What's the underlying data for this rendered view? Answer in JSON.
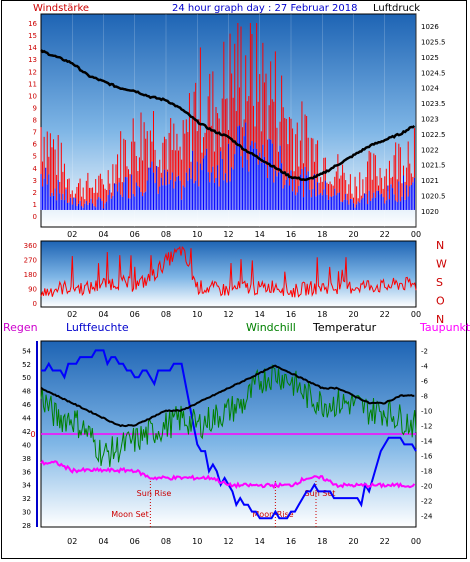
{
  "header": {
    "left_label": "Windstärke",
    "title": "24 hour graph day : 27 Februar 2018",
    "right_label": "Luftdruck"
  },
  "colors": {
    "wind_avg": "#ff0000",
    "wind_gust_base": "#0000ff",
    "pressure": "#000000",
    "direction": "#ff0000",
    "humidity": "#0000ff",
    "windchill": "#008000",
    "temperature": "#000000",
    "dewpoint": "#ff00ff",
    "zero_line": "#ff00ff",
    "panel_gradient_top": "#1e64b4",
    "panel_gradient_bottom": "#ffffff",
    "sun_label": "#cc0000",
    "moon_label": "#cc0000",
    "axis_blue": "#0000cc"
  },
  "chart_data": [
    {
      "type": "line",
      "title": "24 hour graph day : 27 Februar 2018",
      "x_ticks": [
        "02",
        "04",
        "06",
        "08",
        "10",
        "12",
        "14",
        "16",
        "18",
        "20",
        "22",
        "00"
      ],
      "left_axis_label": "Windstärke",
      "left_ticks": [
        "16",
        "15",
        "14",
        "13",
        "12",
        "11",
        "10",
        "9",
        "8",
        "7",
        "6",
        "5",
        "4",
        "3",
        "2",
        "1",
        "0"
      ],
      "right_axis_label": "Luftdruck",
      "right_ticks": [
        "1026",
        "1025.5",
        "1025",
        "1024.5",
        "1024",
        "1023.5",
        "1023",
        "1022.5",
        "1022",
        "1021.5",
        "1021",
        "1020.5",
        "1020"
      ],
      "ylim_left": [
        0,
        16
      ],
      "ylim_right": [
        1020,
        1026.5
      ],
      "series": [
        {
          "name": "Windstärke",
          "hours": [
            0,
            1,
            2,
            3,
            4,
            5,
            6,
            7,
            8,
            9,
            10,
            11,
            12,
            13,
            14,
            15,
            16,
            17,
            18,
            19,
            20,
            21,
            22,
            23,
            24
          ],
          "values": [
            6,
            4,
            2,
            2,
            2,
            4,
            5,
            6,
            5,
            4,
            8,
            7,
            9,
            10,
            9,
            8,
            6,
            5,
            4,
            3,
            2,
            3,
            3,
            4,
            5
          ]
        },
        {
          "name": "Luftdruck",
          "hours": [
            0,
            1,
            2,
            3,
            4,
            5,
            6,
            7,
            8,
            9,
            10,
            11,
            12,
            13,
            14,
            15,
            16,
            17,
            18,
            19,
            20,
            21,
            22,
            23,
            24
          ],
          "values": [
            1025.2,
            1025.0,
            1024.8,
            1024.4,
            1024.2,
            1024.0,
            1023.9,
            1023.7,
            1023.6,
            1023.3,
            1022.9,
            1022.6,
            1022.4,
            1022.0,
            1021.7,
            1021.4,
            1021.1,
            1021.0,
            1021.2,
            1021.5,
            1021.8,
            1022.1,
            1022.3,
            1022.5,
            1022.8
          ]
        }
      ]
    },
    {
      "type": "scatter",
      "x_ticks": [
        "02",
        "04",
        "06",
        "08",
        "10",
        "12",
        "14",
        "16",
        "18",
        "20",
        "22",
        "00"
      ],
      "left_ticks": [
        "360",
        "270",
        "180",
        "90",
        "0"
      ],
      "right_ticks": [
        "N",
        "W",
        "S",
        "O",
        "N"
      ],
      "ylim": [
        0,
        360
      ],
      "series": [
        {
          "name": "direction",
          "hours": [
            0,
            1,
            2,
            3,
            4,
            5,
            6,
            7,
            8,
            9,
            10,
            11,
            12,
            13,
            14,
            15,
            16,
            17,
            18,
            19,
            20,
            21,
            22,
            23,
            24
          ],
          "values": [
            60,
            90,
            100,
            90,
            120,
            130,
            110,
            150,
            260,
            330,
            100,
            90,
            80,
            100,
            90,
            110,
            70,
            90,
            100,
            90,
            100,
            110,
            100,
            120,
            110
          ]
        }
      ]
    },
    {
      "type": "line",
      "legend": [
        "Regen",
        "Luftfeuchte",
        "Windchill",
        "Temperatur",
        "Taupunkt"
      ],
      "x_ticks": [
        "02",
        "04",
        "06",
        "08",
        "10",
        "12",
        "14",
        "16",
        "18",
        "20",
        "22",
        "00"
      ],
      "left_ticks": [
        "54",
        "52",
        "50",
        "48",
        "46",
        "44",
        "42",
        "40",
        "38",
        "36",
        "34",
        "32",
        "30",
        "28"
      ],
      "right_ticks": [
        "-2",
        "-4",
        "-6",
        "-8",
        "-10",
        "-12",
        "-14",
        "-16",
        "-18",
        "-20",
        "-22",
        "-24"
      ],
      "zero_marker": "0",
      "ylim_left": [
        28,
        55
      ],
      "ylim_right": [
        -25,
        -1
      ],
      "annotations": [
        "Sun Rise",
        "Moon Set",
        "Moon Rise",
        "Sun Set"
      ],
      "series": [
        {
          "name": "Luftfeuchte",
          "hours": [
            0,
            1,
            2,
            3,
            4,
            5,
            6,
            7,
            8,
            9,
            10,
            11,
            12,
            13,
            14,
            15,
            16,
            17,
            18,
            19,
            20,
            21,
            22,
            23,
            24
          ],
          "values": [
            51,
            51,
            52,
            53,
            54,
            52,
            50,
            50,
            51,
            52,
            40,
            37,
            34,
            31,
            29,
            29,
            29,
            33,
            33,
            32,
            32,
            33,
            41,
            41,
            39
          ]
        },
        {
          "name": "Windchill",
          "hours": [
            0,
            1,
            2,
            3,
            4,
            5,
            6,
            7,
            8,
            9,
            10,
            11,
            12,
            13,
            14,
            15,
            16,
            17,
            18,
            19,
            20,
            21,
            22,
            23,
            24
          ],
          "values": [
            -8,
            -11,
            -11,
            -13,
            -16,
            -15,
            -14,
            -13,
            -12,
            -11,
            -12,
            -11,
            -10,
            -9,
            -6,
            -5,
            -6,
            -8,
            -9,
            -9,
            -9,
            -10,
            -10,
            -11,
            -12
          ]
        },
        {
          "name": "Temperatur",
          "hours": [
            0,
            1,
            2,
            3,
            4,
            5,
            6,
            7,
            8,
            9,
            10,
            11,
            12,
            13,
            14,
            15,
            16,
            17,
            18,
            19,
            20,
            21,
            22,
            23,
            24
          ],
          "values": [
            -7,
            -8,
            -9,
            -10,
            -11,
            -12,
            -12,
            -11,
            -10,
            -10,
            -9,
            -8,
            -7,
            -6,
            -5,
            -4,
            -5,
            -6,
            -7,
            -7,
            -8,
            -9,
            -9,
            -8,
            -8
          ]
        },
        {
          "name": "Taupunkt",
          "hours": [
            0,
            1,
            2,
            3,
            4,
            5,
            6,
            7,
            8,
            9,
            10,
            11,
            12,
            13,
            14,
            15,
            16,
            17,
            18,
            19,
            20,
            21,
            22,
            23,
            24
          ],
          "values": [
            -17,
            -17,
            -18,
            -18,
            -18,
            -18,
            -18,
            -19,
            -19,
            -19,
            -19,
            -19,
            -20,
            -20,
            -20,
            -20,
            -20,
            -19,
            -19,
            -20,
            -20,
            -20,
            -20,
            -20,
            -20
          ]
        }
      ]
    }
  ]
}
